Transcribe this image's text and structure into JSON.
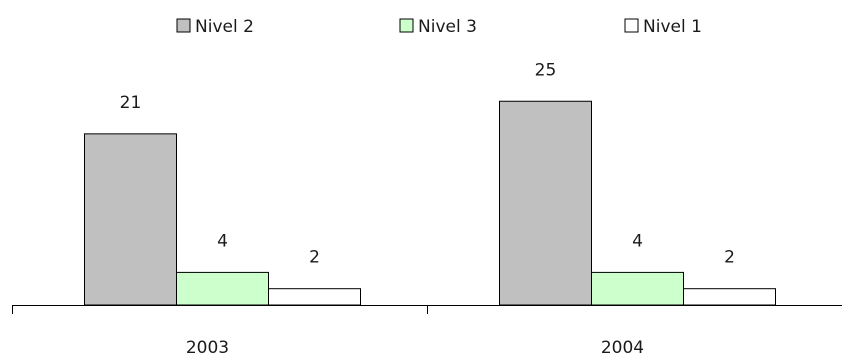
{
  "chart_data": {
    "type": "bar",
    "title": "",
    "xlabel": "",
    "ylabel": "",
    "categories": [
      "2003",
      "2004"
    ],
    "series": [
      {
        "name": "Nivel 2",
        "values": [
          21,
          25
        ],
        "color": "#c0c0c0",
        "stroke": "#000000"
      },
      {
        "name": "Nivel 3",
        "values": [
          4,
          4
        ],
        "color": "#ccffcc",
        "stroke": "#000000"
      },
      {
        "name": "Nivel 1",
        "values": [
          2,
          2
        ],
        "color": "#ffffff",
        "stroke": "#000000"
      }
    ],
    "legend": {
      "position": "top",
      "order": [
        "Nivel 2",
        "Nivel 3",
        "Nivel 1"
      ]
    },
    "data_labels": true,
    "grid": false,
    "y_axis_visible": false,
    "ylim": [
      0,
      33
    ]
  }
}
